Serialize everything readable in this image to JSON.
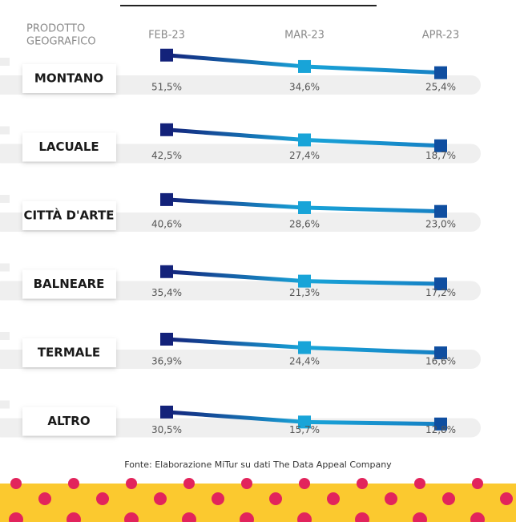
{
  "row_header": [
    "PRODOTTO",
    "GEOGRAFICO"
  ],
  "source": "Fonte: Elaborazione MiTur su dati The Data Appeal Company",
  "marker_colors": [
    "#13227a",
    "#18a4d8",
    "#0f4ea0"
  ],
  "chart_data": [
    {
      "type": "line",
      "title": "MONTANO",
      "categories": [
        "FEB-23",
        "MAR-23",
        "APR-23"
      ],
      "values": [
        51.5,
        34.6,
        25.4
      ],
      "value_labels": [
        "51,5%",
        "34,6%",
        "25,4%"
      ]
    },
    {
      "type": "line",
      "title": "LACUALE",
      "categories": [
        "FEB-23",
        "MAR-23",
        "APR-23"
      ],
      "values": [
        42.5,
        27.4,
        18.7
      ],
      "value_labels": [
        "42,5%",
        "27,4%",
        "18,7%"
      ]
    },
    {
      "type": "line",
      "title": "CITTÀ D'ARTE",
      "categories": [
        "FEB-23",
        "MAR-23",
        "APR-23"
      ],
      "values": [
        40.6,
        28.6,
        23.0
      ],
      "value_labels": [
        "40,6%",
        "28,6%",
        "23,0%"
      ]
    },
    {
      "type": "line",
      "title": "BALNEARE",
      "categories": [
        "FEB-23",
        "MAR-23",
        "APR-23"
      ],
      "values": [
        35.4,
        21.3,
        17.2
      ],
      "value_labels": [
        "35,4%",
        "21,3%",
        "17,2%"
      ]
    },
    {
      "type": "line",
      "title": "TERMALE",
      "categories": [
        "FEB-23",
        "MAR-23",
        "APR-23"
      ],
      "values": [
        36.9,
        24.4,
        16.6
      ],
      "value_labels": [
        "36,9%",
        "24,4%",
        "16,6%"
      ]
    },
    {
      "type": "line",
      "title": "ALTRO",
      "categories": [
        "FEB-23",
        "MAR-23",
        "APR-23"
      ],
      "values": [
        30.5,
        15.7,
        12.8
      ],
      "value_labels": [
        "30,5%",
        "15,7%",
        "12,8%"
      ]
    }
  ]
}
